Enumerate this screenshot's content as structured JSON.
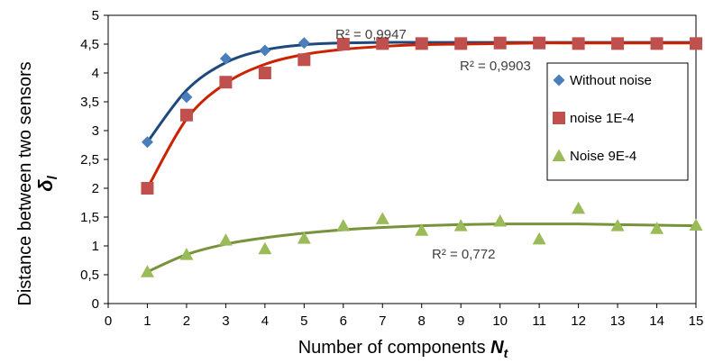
{
  "chart_data": {
    "type": "scatter",
    "title": "",
    "xlabel": "Number of components ",
    "xlabel_symbol": "N",
    "xlabel_subscript": "t",
    "ylabel": "Distance between two sensors",
    "ylabel_symbol": "δ",
    "ylabel_subscript": "l",
    "xlim": [
      0,
      15
    ],
    "ylim": [
      0,
      5
    ],
    "x_ticks": [
      "0",
      "1",
      "2",
      "3",
      "4",
      "5",
      "6",
      "7",
      "8",
      "9",
      "10",
      "11",
      "12",
      "13",
      "14",
      "15"
    ],
    "y_ticks": [
      "0",
      "0,5",
      "1",
      "1,5",
      "2",
      "2,5",
      "3",
      "3,5",
      "4",
      "4,5",
      "5"
    ],
    "grid": false,
    "legend_position": "right",
    "series": [
      {
        "name": "Without noise",
        "marker": "diamond",
        "color": "#4a7ebb",
        "trend_color": "#1f497d",
        "x": [
          1,
          2,
          3,
          4,
          5,
          6,
          7,
          8,
          9,
          10,
          11,
          12,
          13,
          14,
          15
        ],
        "y": [
          2.8,
          3.58,
          4.25,
          4.39,
          4.52,
          4.51,
          4.52,
          4.51,
          4.52,
          4.52,
          4.52,
          4.52,
          4.52,
          4.52,
          4.52
        ],
        "trend": [
          2.8,
          3.7,
          4.18,
          4.4,
          4.49,
          4.52,
          4.53,
          4.53,
          4.53,
          4.53,
          4.53,
          4.53,
          4.53,
          4.53,
          4.53
        ],
        "r2_label": "R² = 0,9947"
      },
      {
        "name": "noise 1E-4",
        "marker": "square",
        "color": "#c0504d",
        "trend_color": "#cc2200",
        "x": [
          1,
          2,
          3,
          4,
          5,
          6,
          7,
          8,
          9,
          10,
          11,
          12,
          13,
          14,
          15
        ],
        "y": [
          2.0,
          3.27,
          3.84,
          4.0,
          4.23,
          4.5,
          4.51,
          4.51,
          4.51,
          4.52,
          4.52,
          4.51,
          4.51,
          4.51,
          4.51
        ],
        "trend": [
          2.0,
          3.2,
          3.82,
          4.15,
          4.32,
          4.41,
          4.46,
          4.49,
          4.5,
          4.51,
          4.52,
          4.52,
          4.52,
          4.52,
          4.52
        ],
        "r2_label": "R² = 0,9903"
      },
      {
        "name": "Noise 9E-4",
        "marker": "triangle",
        "color": "#9bbb59",
        "trend_color": "#77933c",
        "x": [
          1,
          2,
          3,
          4,
          5,
          6,
          7,
          8,
          9,
          10,
          11,
          12,
          13,
          14,
          15
        ],
        "y": [
          0.55,
          0.85,
          1.1,
          0.95,
          1.13,
          1.35,
          1.47,
          1.27,
          1.35,
          1.43,
          1.12,
          1.65,
          1.35,
          1.3,
          1.36
        ],
        "trend": [
          0.55,
          0.85,
          1.03,
          1.14,
          1.22,
          1.28,
          1.32,
          1.35,
          1.37,
          1.38,
          1.38,
          1.38,
          1.37,
          1.36,
          1.35
        ],
        "r2_label": "R² = 0,772"
      }
    ]
  }
}
